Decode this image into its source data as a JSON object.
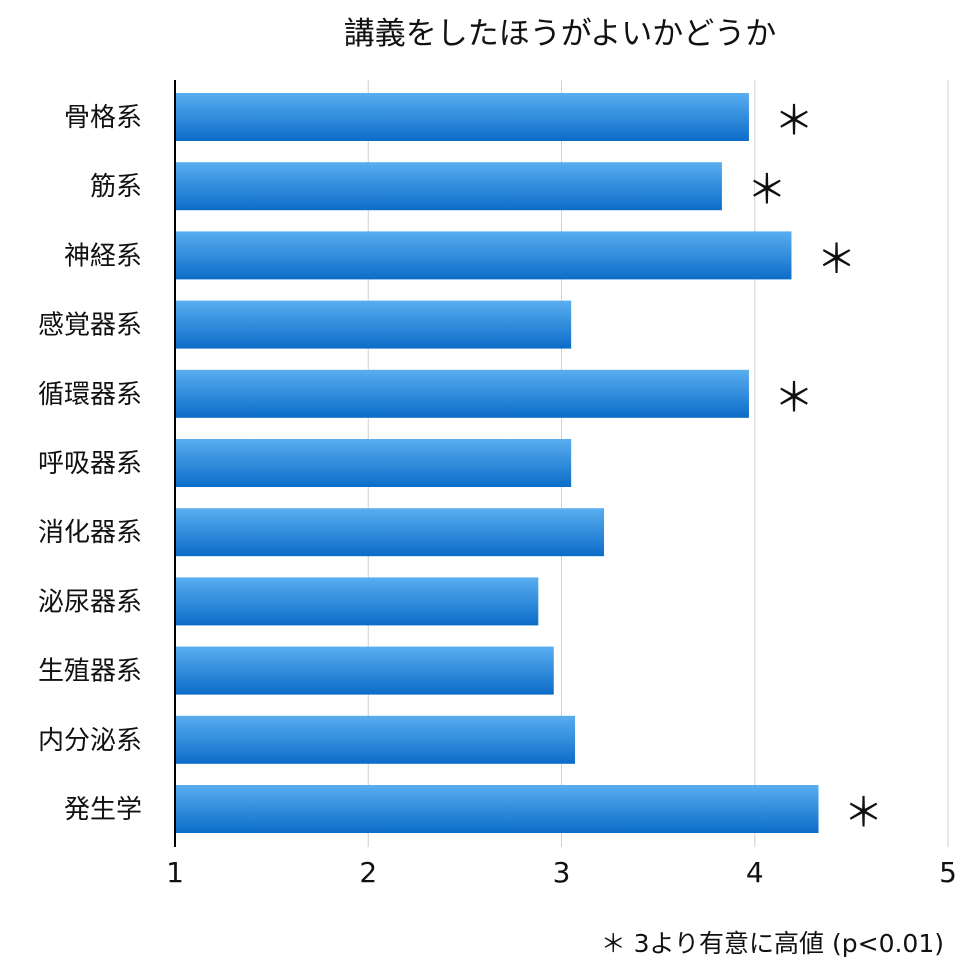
{
  "chart_data": {
    "type": "bar",
    "orientation": "horizontal",
    "title": "講義をしたほうがよいかどうか",
    "categories": [
      "骨格系",
      "筋系",
      "神経系",
      "感覚器系",
      "循環器系",
      "呼吸器系",
      "消化器系",
      "泌尿器系",
      "生殖器系",
      "内分泌系",
      "発生学"
    ],
    "values": [
      3.97,
      3.83,
      4.19,
      3.05,
      3.97,
      3.05,
      3.22,
      2.88,
      2.96,
      3.07,
      4.33
    ],
    "significant": [
      true,
      true,
      true,
      false,
      true,
      false,
      false,
      false,
      false,
      false,
      true
    ],
    "significance_marker": "＊",
    "xlim": [
      1,
      5
    ],
    "xticks": [
      "1",
      "2",
      "3",
      "4",
      "5"
    ],
    "xlabel": "",
    "ylabel": "",
    "grid": "vertical",
    "bar_color_top": "#5aaef0",
    "bar_color_bottom": "#0b6cc8",
    "footnote": "＊ 3より有意に高値 (p<0.01)"
  }
}
